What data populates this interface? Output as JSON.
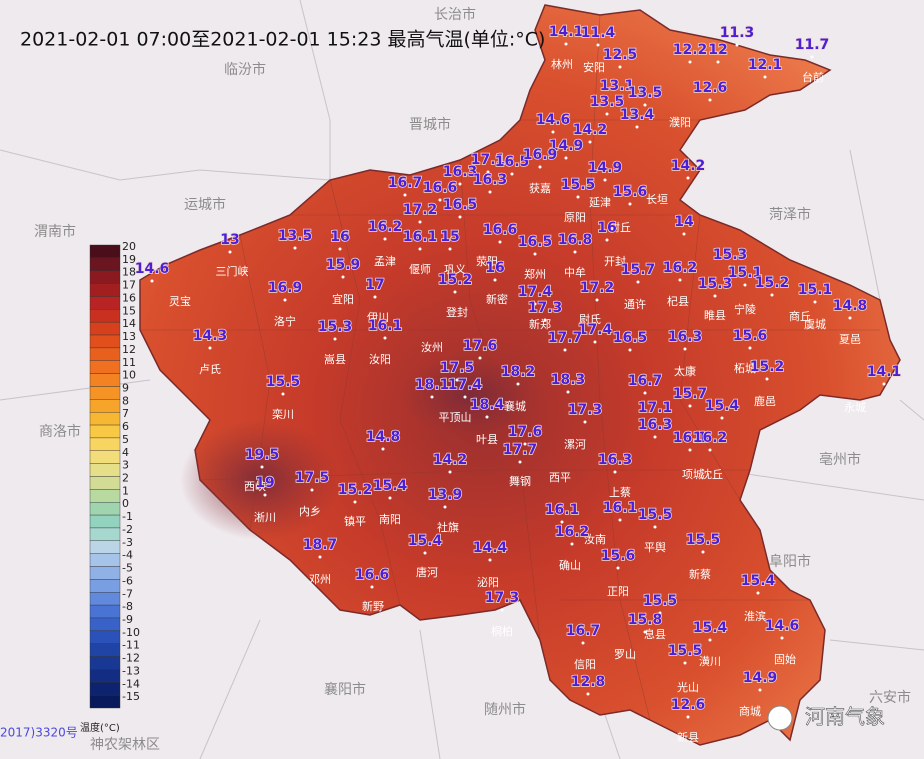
{
  "title": "2021-02-01 07:00至2021-02-01 15:23 最高气温(单位:°C)",
  "legend": {
    "title": "温度(°C)",
    "ticks": [
      20,
      19,
      18,
      17,
      16,
      15,
      14,
      13,
      12,
      11,
      10,
      9,
      8,
      7,
      6,
      5,
      4,
      3,
      2,
      1,
      0,
      -1,
      -2,
      -3,
      -4,
      -5,
      -6,
      -7,
      -8,
      -9,
      -10,
      -11,
      -12,
      -13,
      -14,
      -15
    ]
  },
  "neighbor_cities": [
    "长治市",
    "临汾市",
    "晋城市",
    "运城市",
    "渭南市",
    "菏泽市",
    "商洛市",
    "亳州市",
    "阜阳市",
    "襄阳市",
    "随州市",
    "六安市",
    "神农架林区"
  ],
  "places": [
    "林州",
    "安阳",
    "濮阳",
    "台前",
    "三门峡",
    "灵宝",
    "卢氏",
    "洛宁",
    "宜阳",
    "栾川",
    "嵩县",
    "汝阳",
    "孟津",
    "西峡",
    "淅川",
    "内乡",
    "镇平",
    "南阳",
    "唐河",
    "新野",
    "邓州",
    "桐柏",
    "社旗",
    "泌阳",
    "舞钢",
    "叶县",
    "襄城",
    "平顶山",
    "郑州",
    "新郑",
    "漯河",
    "西平",
    "上蔡",
    "汝南",
    "确山",
    "正阳",
    "平舆",
    "新蔡",
    "息县",
    "罗山",
    "信阳",
    "光山",
    "新县",
    "商城",
    "固始",
    "淮滨",
    "潢川",
    "商丘",
    "夏邑",
    "永城",
    "虞城",
    "鹿邑",
    "太康",
    "项城",
    "沈丘",
    "宁陵",
    "柘城",
    "睢县",
    "杞县",
    "通许",
    "尉氏",
    "开封",
    "中牟",
    "长垣",
    "封丘",
    "原阳",
    "延津",
    "获嘉",
    "汝州",
    "伊川",
    "偃师",
    "巩义",
    "荥阳",
    "登封",
    "新密"
  ],
  "temperatures": [
    14.1,
    11.4,
    12.5,
    12.2,
    12,
    11.3,
    11.7,
    12.1,
    12.6,
    13.1,
    13.5,
    13.5,
    13.4,
    14.6,
    14.2,
    14.9,
    14.2,
    14.9,
    15.6,
    15.5,
    17.1,
    16.5,
    16.9,
    16.3,
    16.3,
    16.7,
    16.6,
    17.2,
    16.5,
    14,
    13,
    13.5,
    16,
    16.2,
    16.1,
    15,
    16.6,
    16.5,
    16.8,
    16,
    15.3,
    14.6,
    15.9,
    15.2,
    16,
    15.7,
    16.2,
    15.1,
    15.3,
    15.2,
    15.1,
    16.9,
    17,
    17.4,
    17.2,
    14.8,
    17.3,
    17.4,
    17.7,
    16.5,
    14.3,
    15.3,
    16.1,
    16.3,
    15.6,
    17.6,
    17.5,
    18.2,
    18.3,
    15.2,
    14.1,
    18.1,
    17.4,
    16.7,
    15.5,
    18.4,
    15.7,
    17.1,
    15.4,
    17.3,
    16.3,
    17.6,
    16.1,
    16.2,
    14.8,
    17.7,
    16.3,
    19.5,
    14.2,
    17.5,
    19,
    15.2,
    15.4,
    13.9,
    16.1,
    16.1,
    15.5,
    16.2,
    18.7,
    15.4,
    14.4,
    15.5,
    15.6,
    16.6,
    15.4,
    17.3,
    15.5,
    15.8,
    14.6,
    15.4,
    16.7,
    15.5,
    12.8,
    14.9,
    12.6
  ],
  "footer": {
    "code": "2017)3320号",
    "watermark": "河南气象"
  }
}
